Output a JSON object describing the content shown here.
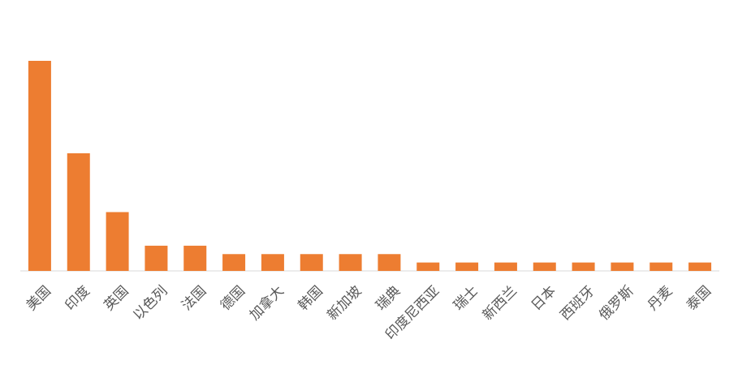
{
  "chart_data": {
    "type": "bar",
    "categories": [
      "美国",
      "印度",
      "英国",
      "以色列",
      "法国",
      "德国",
      "加拿大",
      "韩国",
      "新加坡",
      "瑞典",
      "印度尼西亚",
      "瑞士",
      "新西兰",
      "日本",
      "西班牙",
      "俄罗斯",
      "丹麦",
      "泰国"
    ],
    "values": [
      25,
      14,
      7,
      3,
      3,
      2,
      2,
      2,
      2,
      2,
      1,
      1,
      1,
      1,
      1,
      1,
      1,
      1
    ],
    "ylim": [
      0,
      25
    ],
    "grid": false,
    "legend": "none",
    "bar_color": "#ED7D31",
    "axis_color": "#D9D9D9"
  }
}
